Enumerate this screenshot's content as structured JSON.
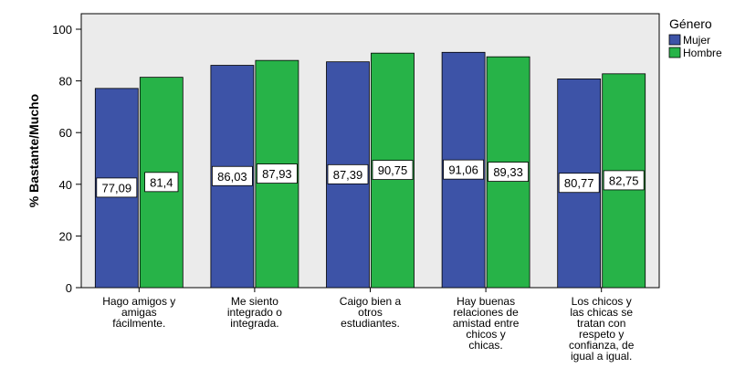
{
  "chart_data": {
    "type": "bar",
    "ylabel": "% Bastante/Mucho",
    "xlabel": "",
    "ylim": [
      0,
      100
    ],
    "yticks": [
      0,
      20,
      40,
      60,
      80,
      100
    ],
    "grid": false,
    "legend_position": "top-right",
    "legend_title": "Género",
    "background": "#ebebeb",
    "categories": [
      [
        "Hago amigos y",
        "amigas",
        "fácilmente."
      ],
      [
        "Me siento",
        "integrado o",
        "integrada."
      ],
      [
        "Caigo bien a",
        "otros",
        "estudiantes."
      ],
      [
        "Hay buenas",
        "relaciones de",
        "amistad entre",
        "chicos y",
        "chicas."
      ],
      [
        "Los chicos y",
        "las chicas se",
        "tratan con",
        "respeto y",
        "confianza, de",
        "igual a igual."
      ]
    ],
    "series": [
      {
        "name": "Mujer",
        "color": "#3d53a7",
        "values": [
          77.09,
          86.03,
          87.39,
          91.06,
          80.77
        ],
        "labels": [
          "77,09",
          "86,03",
          "87,39",
          "91,06",
          "80,77"
        ]
      },
      {
        "name": "Hombre",
        "color": "#27b348",
        "values": [
          81.4,
          87.93,
          90.75,
          89.33,
          82.75
        ],
        "labels": [
          "81,4",
          "87,93",
          "90,75",
          "89,33",
          "82,75"
        ]
      }
    ]
  }
}
